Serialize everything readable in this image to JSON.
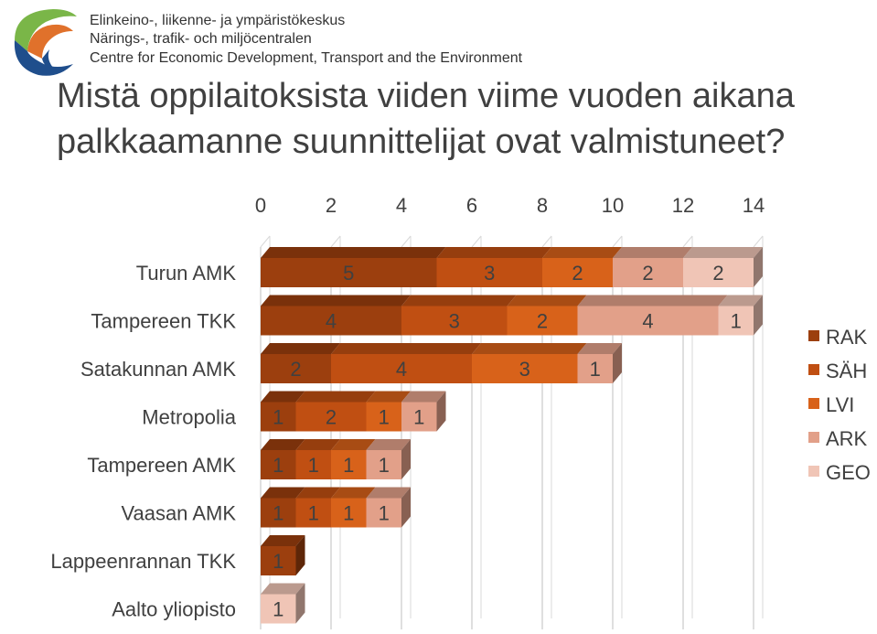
{
  "header": {
    "org_lines": [
      "Elinkeino-, liikenne- ja ympäristökeskus",
      "Närings-, trafik- och miljöcentralen",
      "Centre for Economic Development, Transport and the Environment"
    ],
    "title_lines": [
      "Mistä oppilaitoksista viiden viime vuoden aikana",
      "palkkaamanne suunnittelijat ovat valmistuneet?"
    ]
  },
  "colors": {
    "RAK": "#9c3f0e",
    "SÄH": "#c04f12",
    "LVI": "#d8621a",
    "ARK": "#e2a089",
    "GEO": "#f0c5b6",
    "logo_green": "#7ab648",
    "logo_orange": "#e0712b",
    "logo_blue": "#1f4e8c"
  },
  "chart_data": {
    "type": "bar",
    "orientation": "horizontal",
    "stacked": true,
    "categories": [
      "Turun AMK",
      "Tampereen TKK",
      "Satakunnan AMK",
      "Metropolia",
      "Tampereen AMK",
      "Vaasan AMK",
      "Lappeenrannan TKK",
      "Aalto yliopisto"
    ],
    "series": [
      {
        "name": "RAK",
        "values": [
          5,
          4,
          2,
          1,
          1,
          1,
          1,
          0
        ]
      },
      {
        "name": "SÄH",
        "values": [
          3,
          3,
          4,
          2,
          1,
          1,
          0,
          0
        ]
      },
      {
        "name": "LVI",
        "values": [
          2,
          2,
          3,
          1,
          1,
          1,
          0,
          0
        ]
      },
      {
        "name": "ARK",
        "values": [
          2,
          4,
          1,
          1,
          1,
          1,
          0,
          0
        ]
      },
      {
        "name": "GEO",
        "values": [
          2,
          1,
          0,
          0,
          0,
          0,
          0,
          1
        ]
      }
    ],
    "x_ticks": [
      0,
      2,
      4,
      6,
      8,
      10,
      12,
      14
    ],
    "xlim": [
      0,
      14
    ],
    "grid": true,
    "x_axis_position": "top",
    "legend_position": "right"
  }
}
